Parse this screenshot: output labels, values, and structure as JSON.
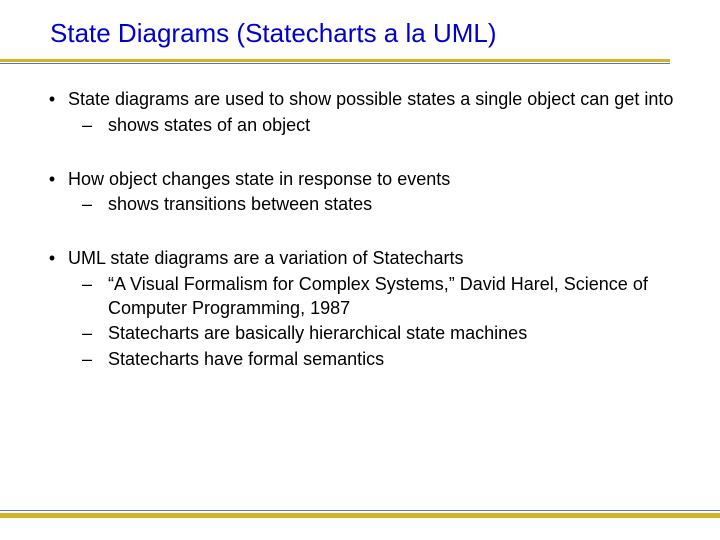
{
  "slide": {
    "title": "State Diagrams (Statecharts a la UML)",
    "title_color": "#0000cc",
    "title_fontsize": 26,
    "body_color": "#000000",
    "body_fontsize": 18,
    "accent_thick_color": "#d4b528",
    "accent_thin_color": "#5b7aa8",
    "background_color": "#ffffff",
    "bullets": [
      {
        "text": "State diagrams are used to show possible states a single object can get into",
        "subs": [
          "shows states of an object"
        ]
      },
      {
        "text": "How object changes state in response to events",
        "subs": [
          "shows transitions between states"
        ]
      },
      {
        "text": "UML state diagrams are a variation of  Statecharts",
        "subs": [
          " “A Visual Formalism for Complex Systems,” David Harel, Science of Computer Programming, 1987",
          "Statecharts are basically hierarchical state machines",
          "Statecharts have formal semantics"
        ]
      }
    ]
  }
}
